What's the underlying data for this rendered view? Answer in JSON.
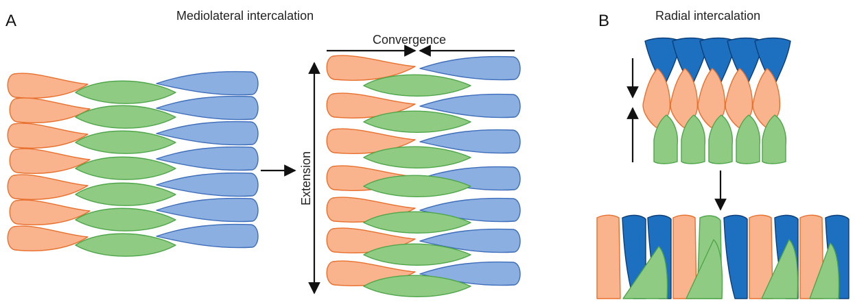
{
  "panel_a": {
    "letter": "A",
    "title": "Mediolateral intercalation",
    "convergence_label": "Convergence",
    "extension_label": "Extension"
  },
  "panel_b": {
    "letter": "B",
    "title": "Radial intercalation"
  },
  "colors": {
    "orange_fill": "#F9B48D",
    "orange_stroke": "#E8702E",
    "green_fill": "#8FCB83",
    "green_stroke": "#4FA64A",
    "light_blue_fill": "#8AAFE0",
    "light_blue_stroke": "#3E6DBA",
    "dark_blue_fill": "#1D6FBF",
    "dark_blue_stroke": "#0B3E78"
  }
}
